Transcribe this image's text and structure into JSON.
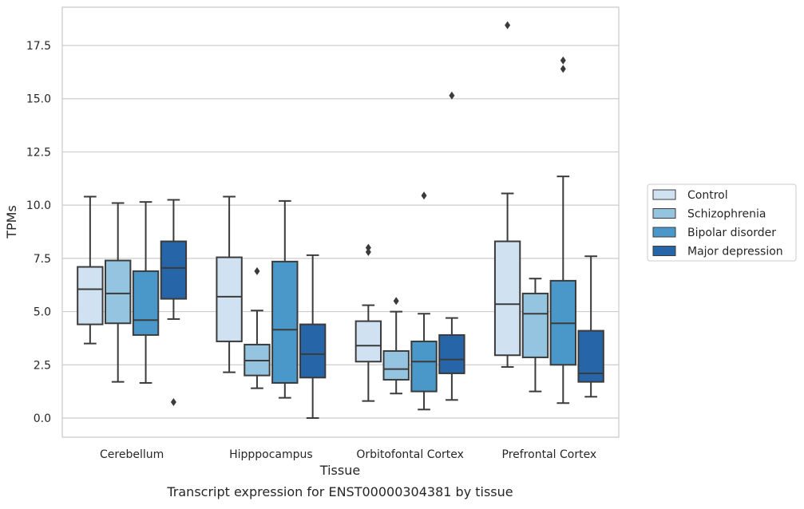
{
  "chart_data": {
    "type": "box",
    "caption": "Transcript expression for ENST00000304381 by tissue",
    "xlabel": "Tissue",
    "ylabel": "TPMs",
    "ylim": [
      -0.9,
      19.3
    ],
    "yticks": [
      "0.0",
      "2.5",
      "5.0",
      "7.5",
      "10.0",
      "12.5",
      "15.0",
      "17.5"
    ],
    "grid": true,
    "legend_position": "right",
    "categories": [
      "Cerebellum",
      "Hipppocampus",
      "Orbitofontal Cortex",
      "Prefrontal Cortex"
    ],
    "series": [
      {
        "name": "Control",
        "color": "#d0e1f2",
        "boxes": [
          {
            "whislo": 3.5,
            "q1": 4.4,
            "med": 6.05,
            "q3": 7.1,
            "whishi": 10.4,
            "fliers": []
          },
          {
            "whislo": 2.15,
            "q1": 3.6,
            "med": 5.7,
            "q3": 7.55,
            "whishi": 10.4,
            "fliers": []
          },
          {
            "whislo": 0.8,
            "q1": 2.65,
            "med": 3.4,
            "q3": 4.55,
            "whishi": 5.3,
            "fliers": [
              7.8,
              8.0
            ]
          },
          {
            "whislo": 2.4,
            "q1": 2.95,
            "med": 5.35,
            "q3": 8.3,
            "whishi": 10.55,
            "fliers": [
              18.45
            ]
          }
        ]
      },
      {
        "name": "Schizophrenia",
        "color": "#94c4df",
        "boxes": [
          {
            "whislo": 1.7,
            "q1": 4.45,
            "med": 5.85,
            "q3": 7.4,
            "whishi": 10.1,
            "fliers": []
          },
          {
            "whislo": 1.4,
            "q1": 2.0,
            "med": 2.7,
            "q3": 3.45,
            "whishi": 5.05,
            "fliers": [
              6.9
            ]
          },
          {
            "whislo": 1.15,
            "q1": 1.8,
            "med": 2.3,
            "q3": 3.15,
            "whishi": 5.0,
            "fliers": [
              5.5
            ]
          },
          {
            "whislo": 1.25,
            "q1": 2.85,
            "med": 4.9,
            "q3": 5.85,
            "whishi": 6.55,
            "fliers": []
          }
        ]
      },
      {
        "name": "Bipolar disorder",
        "color": "#4a98c9",
        "boxes": [
          {
            "whislo": 1.65,
            "q1": 3.9,
            "med": 4.6,
            "q3": 6.9,
            "whishi": 10.15,
            "fliers": []
          },
          {
            "whislo": 0.95,
            "q1": 1.65,
            "med": 4.15,
            "q3": 7.35,
            "whishi": 10.2,
            "fliers": []
          },
          {
            "whislo": 0.4,
            "q1": 1.25,
            "med": 2.65,
            "q3": 3.6,
            "whishi": 4.9,
            "fliers": [
              10.45
            ]
          },
          {
            "whislo": 0.7,
            "q1": 2.5,
            "med": 4.45,
            "q3": 6.45,
            "whishi": 11.35,
            "fliers": [
              16.4,
              16.8
            ]
          }
        ]
      },
      {
        "name": "Major depression",
        "color": "#2565a8",
        "boxes": [
          {
            "whislo": 4.65,
            "q1": 5.6,
            "med": 7.05,
            "q3": 8.3,
            "whishi": 10.25,
            "fliers": [
              0.75
            ]
          },
          {
            "whislo": 0.0,
            "q1": 1.9,
            "med": 3.0,
            "q3": 4.4,
            "whishi": 7.65,
            "fliers": []
          },
          {
            "whislo": 0.85,
            "q1": 2.1,
            "med": 2.75,
            "q3": 3.9,
            "whishi": 4.7,
            "fliers": [
              15.15
            ]
          },
          {
            "whislo": 1.0,
            "q1": 1.7,
            "med": 2.1,
            "q3": 4.1,
            "whishi": 7.6,
            "fliers": []
          }
        ]
      }
    ]
  }
}
